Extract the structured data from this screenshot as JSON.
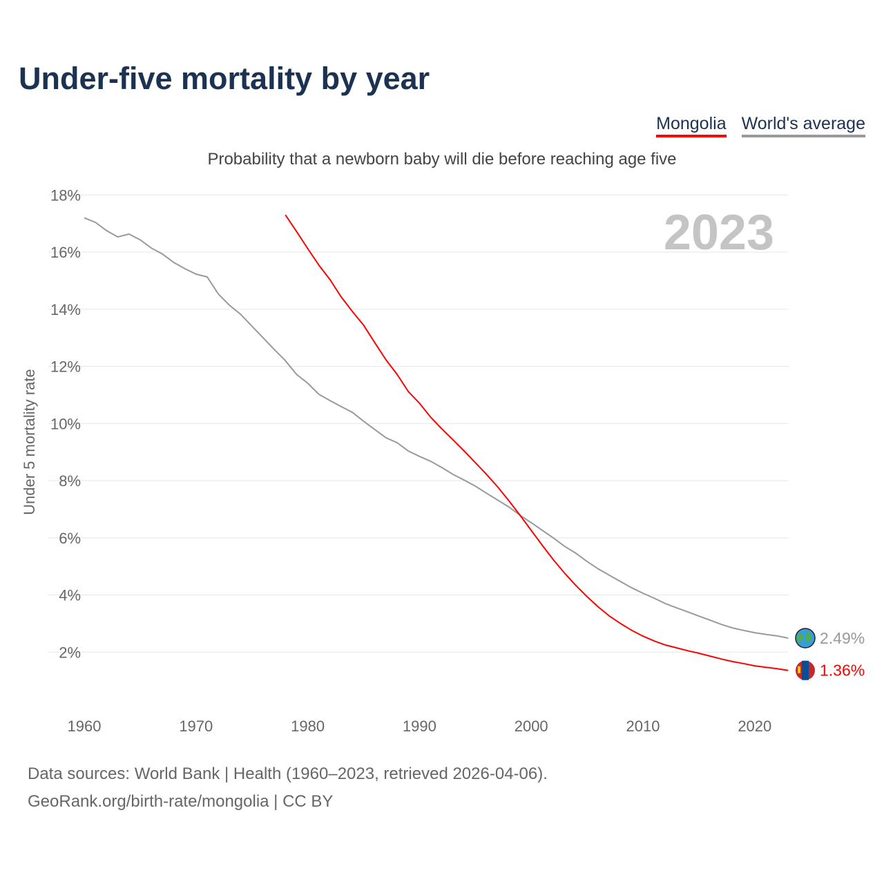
{
  "title": "Under-five mortality by year",
  "legend": {
    "mongolia": "Mongolia",
    "world": "World's average"
  },
  "footer": {
    "line1": "Data sources: World Bank | Health (1960–2023, retrieved 2026-04-06).",
    "line2": "GeoRank.org/birth-rate/mongolia | CC BY"
  },
  "chart_data": {
    "type": "line",
    "subtitle": "Probability that a newborn baby will die before reaching age five",
    "ylabel": "Under 5 mortality rate",
    "year_label": "2023",
    "ylim": [
      0,
      18
    ],
    "xlim": [
      1960,
      2023
    ],
    "yticks": [
      "2%",
      "4%",
      "6%",
      "8%",
      "10%",
      "12%",
      "14%",
      "16%",
      "18%"
    ],
    "ytick_values": [
      2,
      4,
      6,
      8,
      10,
      12,
      14,
      16,
      18
    ],
    "xticks": [
      1960,
      1970,
      1980,
      1990,
      2000,
      2010,
      2020
    ],
    "grid": true,
    "series": [
      {
        "name": "World's average",
        "color": "#999999",
        "end_label": "2.49%",
        "icon": "globe-icon",
        "start": 1960,
        "values": [
          17.2,
          17.04,
          16.75,
          16.53,
          16.63,
          16.43,
          16.14,
          15.93,
          15.64,
          15.42,
          15.23,
          15.13,
          14.53,
          14.14,
          13.82,
          13.41,
          13.0,
          12.59,
          12.2,
          11.72,
          11.41,
          11.02,
          10.8,
          10.59,
          10.39,
          10.08,
          9.79,
          9.5,
          9.33,
          9.04,
          8.85,
          8.68,
          8.46,
          8.22,
          8.02,
          7.81,
          7.56,
          7.32,
          7.08,
          6.79,
          6.53,
          6.26,
          5.99,
          5.7,
          5.46,
          5.17,
          4.91,
          4.69,
          4.47,
          4.25,
          4.06,
          3.89,
          3.7,
          3.55,
          3.41,
          3.26,
          3.12,
          2.97,
          2.85,
          2.76,
          2.68,
          2.62,
          2.57,
          2.49
        ]
      },
      {
        "name": "Mongolia",
        "color": "#ff0000",
        "end_label": "1.36%",
        "icon": "mongolia-flag-icon",
        "start": 1978,
        "values": [
          17.3,
          16.72,
          16.12,
          15.54,
          15.03,
          14.43,
          13.92,
          13.44,
          12.83,
          12.23,
          11.72,
          11.12,
          10.71,
          10.22,
          9.81,
          9.43,
          9.04,
          8.63,
          8.22,
          7.78,
          7.3,
          6.79,
          6.26,
          5.73,
          5.22,
          4.76,
          4.33,
          3.94,
          3.58,
          3.26,
          3.0,
          2.76,
          2.56,
          2.39,
          2.25,
          2.15,
          2.05,
          1.96,
          1.86,
          1.76,
          1.67,
          1.6,
          1.52,
          1.47,
          1.42,
          1.36
        ]
      }
    ]
  }
}
